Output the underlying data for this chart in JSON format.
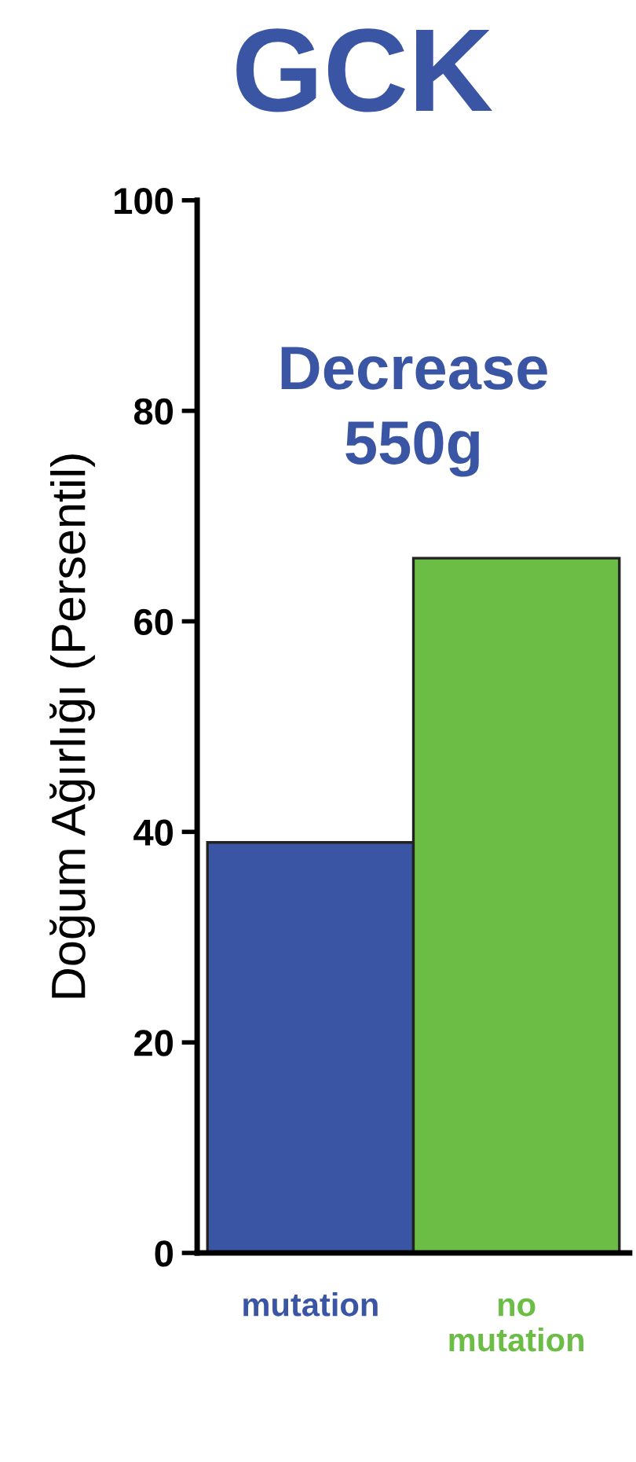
{
  "chart_data": {
    "type": "bar",
    "title": "GCK",
    "ylabel": "Doğum Ağırlığı (Persentil)",
    "categories": [
      "mutation",
      "no\nmutation"
    ],
    "values": [
      39,
      66
    ],
    "colors": [
      "#3a55a4",
      "#6cbd45"
    ],
    "ylim": [
      0,
      100
    ],
    "yticks": [
      0,
      20,
      40,
      60,
      80,
      100
    ],
    "grid": false,
    "legend": false,
    "annotations": [
      "Decrease\n550g"
    ]
  }
}
